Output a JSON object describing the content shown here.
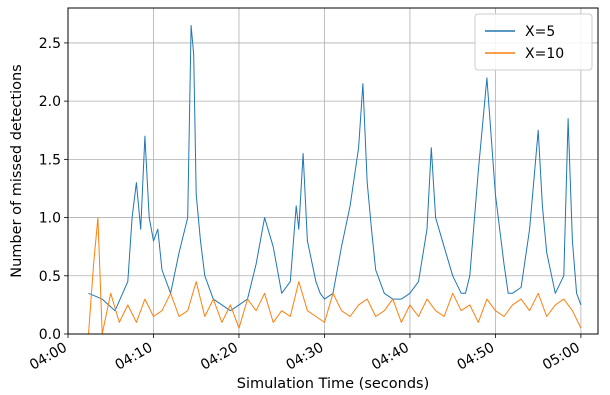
{
  "chart_data": {
    "type": "line",
    "title": "",
    "xlabel": "Simulation Time (seconds)",
    "ylabel": "Number of missed detections",
    "x_ticks": [
      "04:00",
      "04:10",
      "04:20",
      "04:30",
      "04:40",
      "04:50",
      "05:00"
    ],
    "x_range_minutes": [
      0,
      62
    ],
    "ylim": [
      0,
      2.8
    ],
    "y_ticks": [
      "0.0",
      "0.5",
      "1.0",
      "1.5",
      "2.0",
      "2.5"
    ],
    "y_tick_values": [
      0,
      0.5,
      1.0,
      1.5,
      2.0,
      2.5
    ],
    "grid": true,
    "legend_position": "upper-right",
    "series": [
      {
        "name": "X=5",
        "color": "#1f77b4",
        "x_minutes": [
          2.4,
          4.0,
          5.5,
          7.0,
          7.5,
          8.0,
          8.5,
          9.0,
          9.5,
          10.0,
          10.5,
          11.0,
          12.0,
          13.0,
          14.0,
          14.4,
          14.7,
          15.0,
          15.5,
          16.0,
          17.0,
          18.0,
          19.0,
          20.0,
          21.0,
          22.0,
          23.0,
          24.0,
          25.0,
          26.0,
          26.7,
          27.0,
          27.5,
          28.0,
          29.0,
          29.5,
          30.0,
          31.0,
          32.0,
          33.0,
          34.0,
          34.5,
          35.0,
          35.5,
          36.0,
          37.0,
          38.0,
          39.0,
          40.0,
          41.0,
          42.0,
          42.5,
          43.0,
          44.0,
          45.0,
          46.0,
          46.5,
          47.0,
          48.0,
          49.0,
          50.0,
          50.5,
          51.0,
          51.5,
          52.0,
          53.0,
          54.0,
          55.0,
          55.5,
          56.0,
          57.0,
          58.0,
          58.5,
          59.0,
          59.5,
          60.0
        ],
        "y": [
          0.35,
          0.3,
          0.2,
          0.45,
          1.0,
          1.3,
          0.9,
          1.7,
          1.0,
          0.8,
          0.9,
          0.55,
          0.35,
          0.7,
          1.0,
          2.65,
          2.4,
          1.2,
          0.8,
          0.5,
          0.3,
          0.25,
          0.2,
          0.25,
          0.3,
          0.6,
          1.0,
          0.75,
          0.35,
          0.45,
          1.1,
          0.9,
          1.55,
          0.8,
          0.45,
          0.35,
          0.3,
          0.35,
          0.75,
          1.1,
          1.6,
          2.15,
          1.3,
          0.9,
          0.55,
          0.35,
          0.3,
          0.3,
          0.35,
          0.45,
          0.9,
          1.6,
          1.0,
          0.75,
          0.5,
          0.35,
          0.35,
          0.5,
          1.4,
          2.2,
          1.2,
          0.9,
          0.6,
          0.35,
          0.35,
          0.4,
          0.9,
          1.75,
          1.1,
          0.7,
          0.35,
          0.5,
          1.85,
          0.8,
          0.35,
          0.25
        ]
      },
      {
        "name": "X=10",
        "color": "#ff7f0e",
        "x_minutes": [
          2.4,
          3.0,
          3.5,
          4.0,
          5.0,
          6.0,
          7.0,
          8.0,
          9.0,
          10.0,
          11.0,
          12.0,
          13.0,
          14.0,
          15.0,
          16.0,
          17.0,
          18.0,
          19.0,
          20.0,
          21.0,
          22.0,
          23.0,
          24.0,
          25.0,
          26.0,
          27.0,
          28.0,
          29.0,
          30.0,
          31.0,
          32.0,
          33.0,
          34.0,
          35.0,
          36.0,
          37.0,
          38.0,
          39.0,
          40.0,
          41.0,
          42.0,
          43.0,
          44.0,
          45.0,
          46.0,
          47.0,
          48.0,
          49.0,
          50.0,
          51.0,
          52.0,
          53.0,
          54.0,
          55.0,
          56.0,
          57.0,
          58.0,
          59.0,
          60.0
        ],
        "y": [
          0.0,
          0.6,
          1.0,
          0.0,
          0.35,
          0.1,
          0.25,
          0.1,
          0.3,
          0.15,
          0.2,
          0.35,
          0.15,
          0.2,
          0.45,
          0.15,
          0.3,
          0.1,
          0.25,
          0.05,
          0.3,
          0.2,
          0.35,
          0.1,
          0.2,
          0.15,
          0.45,
          0.2,
          0.15,
          0.1,
          0.35,
          0.2,
          0.15,
          0.25,
          0.3,
          0.15,
          0.2,
          0.3,
          0.1,
          0.25,
          0.15,
          0.3,
          0.2,
          0.15,
          0.35,
          0.2,
          0.25,
          0.1,
          0.3,
          0.2,
          0.15,
          0.25,
          0.3,
          0.2,
          0.35,
          0.15,
          0.25,
          0.3,
          0.2,
          0.05
        ]
      }
    ]
  }
}
